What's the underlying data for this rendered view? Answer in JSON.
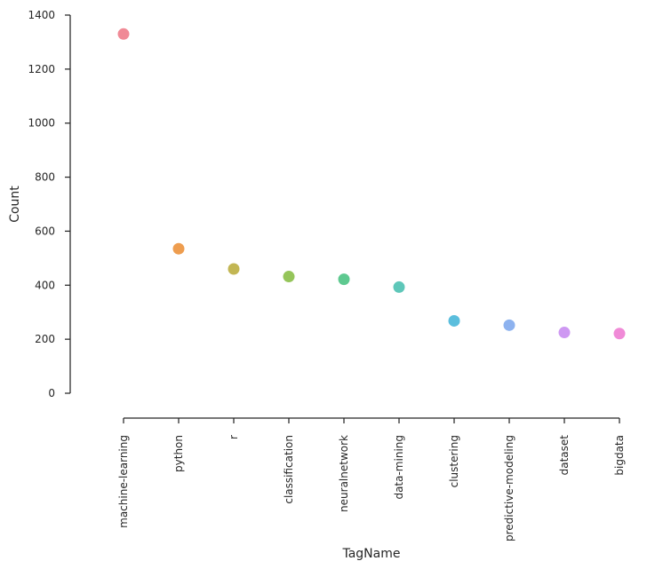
{
  "chart_data": {
    "type": "scatter",
    "title": "",
    "xlabel": "TagName",
    "ylabel": "Count",
    "ylim": [
      0,
      1400
    ],
    "yticks": [
      0,
      200,
      400,
      600,
      800,
      1000,
      1200,
      1400
    ],
    "grid": false,
    "categories": [
      "machine-learning",
      "python",
      "r",
      "classification",
      "neuralnetwork",
      "data-mining",
      "clustering",
      "predictive-modeling",
      "dataset",
      "bigdata"
    ],
    "values": [
      1330,
      535,
      460,
      432,
      422,
      393,
      268,
      252,
      225,
      221
    ],
    "colors": [
      "#f08a96",
      "#ee9d4f",
      "#c2b653",
      "#95c55a",
      "#5ec990",
      "#5ec7b9",
      "#5bbedd",
      "#8db2ef",
      "#ce98f2",
      "#f08ad7"
    ]
  }
}
